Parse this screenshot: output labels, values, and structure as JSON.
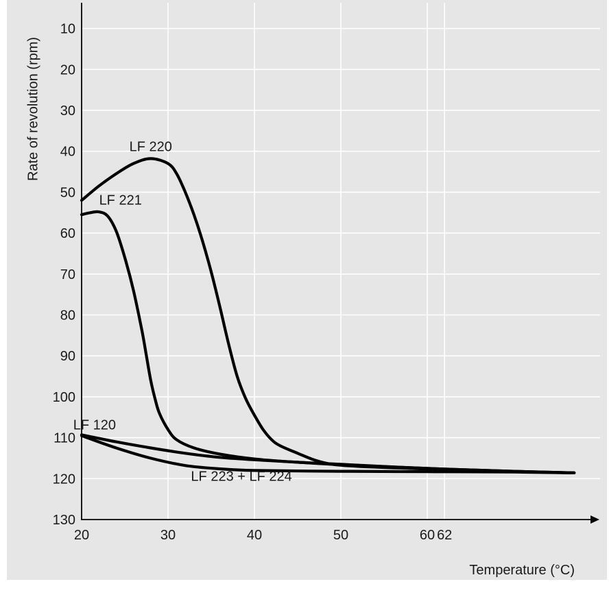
{
  "chart_data": {
    "type": "line",
    "xlabel": "Temperature (°C)",
    "ylabel": "Rate of revolution (rpm)",
    "x_ticks": [
      {
        "value": 20,
        "label": "20"
      },
      {
        "value": 30,
        "label": "30"
      },
      {
        "value": 40,
        "label": "40"
      },
      {
        "value": 50,
        "label": "50"
      },
      {
        "value": 60,
        "label": "60"
      },
      {
        "value": 62,
        "label": "62"
      }
    ],
    "y_ticks": [
      {
        "value": 10,
        "label": "10"
      },
      {
        "value": 20,
        "label": "20"
      },
      {
        "value": 30,
        "label": "30"
      },
      {
        "value": 40,
        "label": "40"
      },
      {
        "value": 50,
        "label": "50"
      },
      {
        "value": 60,
        "label": "60"
      },
      {
        "value": 70,
        "label": "70"
      },
      {
        "value": 80,
        "label": "80"
      },
      {
        "value": 90,
        "label": "90"
      },
      {
        "value": 100,
        "label": "100"
      },
      {
        "value": 110,
        "label": "110"
      },
      {
        "value": 120,
        "label": "120"
      },
      {
        "value": 130,
        "label": "130"
      }
    ],
    "xlim": [
      20,
      78
    ],
    "ylim": [
      130,
      3
    ],
    "y_inverted": true,
    "grid": true,
    "series": [
      {
        "name": "LF 220",
        "points": [
          [
            20,
            52
          ],
          [
            22,
            48.5
          ],
          [
            24,
            45.5
          ],
          [
            26,
            43
          ],
          [
            28,
            41.8
          ],
          [
            30,
            43
          ],
          [
            31,
            45.5
          ],
          [
            32,
            50
          ],
          [
            33,
            55.5
          ],
          [
            34,
            62
          ],
          [
            35,
            69.5
          ],
          [
            36,
            78
          ],
          [
            37,
            87
          ],
          [
            38,
            95
          ],
          [
            39,
            100.5
          ],
          [
            40,
            104.5
          ],
          [
            41,
            108
          ],
          [
            42,
            110.5
          ],
          [
            43,
            112
          ],
          [
            45,
            113.8
          ],
          [
            47,
            115.5
          ],
          [
            49,
            116.5
          ],
          [
            52,
            117
          ],
          [
            58,
            117.5
          ],
          [
            65,
            118
          ],
          [
            70,
            118.3
          ],
          [
            77,
            118.6
          ]
        ]
      },
      {
        "name": "LF 221",
        "points": [
          [
            20,
            55.5
          ],
          [
            21,
            55
          ],
          [
            22,
            54.8
          ],
          [
            23,
            55.8
          ],
          [
            24,
            59.5
          ],
          [
            25,
            66
          ],
          [
            26,
            74
          ],
          [
            27,
            84
          ],
          [
            27.5,
            90
          ],
          [
            28,
            96
          ],
          [
            28.5,
            100.5
          ],
          [
            29,
            104
          ],
          [
            30,
            108
          ],
          [
            31,
            110.5
          ],
          [
            33,
            112.5
          ],
          [
            36,
            114
          ],
          [
            40,
            115.2
          ],
          [
            45,
            116
          ],
          [
            50,
            116.5
          ],
          [
            60,
            117.5
          ],
          [
            70,
            118.2
          ],
          [
            77,
            118.6
          ]
        ]
      },
      {
        "name": "LF 120",
        "points": [
          [
            20,
            109.3
          ],
          [
            24,
            111
          ],
          [
            28,
            112.5
          ],
          [
            32,
            113.8
          ],
          [
            36,
            114.8
          ],
          [
            40,
            115.4
          ],
          [
            45,
            116
          ],
          [
            50,
            116.6
          ],
          [
            60,
            117.5
          ],
          [
            70,
            118.2
          ],
          [
            77,
            118.6
          ]
        ]
      },
      {
        "name": "LF 223 + LF 224",
        "points": [
          [
            20,
            109.5
          ],
          [
            24,
            112.5
          ],
          [
            28,
            115
          ],
          [
            32,
            116.8
          ],
          [
            36,
            117.6
          ],
          [
            40,
            118
          ],
          [
            50,
            118.2
          ],
          [
            60,
            118.3
          ],
          [
            70,
            118.4
          ],
          [
            77,
            118.6
          ]
        ]
      }
    ],
    "annotations": [
      {
        "text": "LF 220",
        "x": 28,
        "y": 40
      },
      {
        "text": "LF 221",
        "x": 24.5,
        "y": 53
      },
      {
        "text": "LF 120",
        "x": 21.5,
        "y": 108
      },
      {
        "text": "LF 223 + LF 224",
        "x": 38.5,
        "y": 120.5
      }
    ]
  },
  "colors": {
    "background": "#e6e6e7",
    "grid": "#ffffff",
    "line": "#000000"
  }
}
